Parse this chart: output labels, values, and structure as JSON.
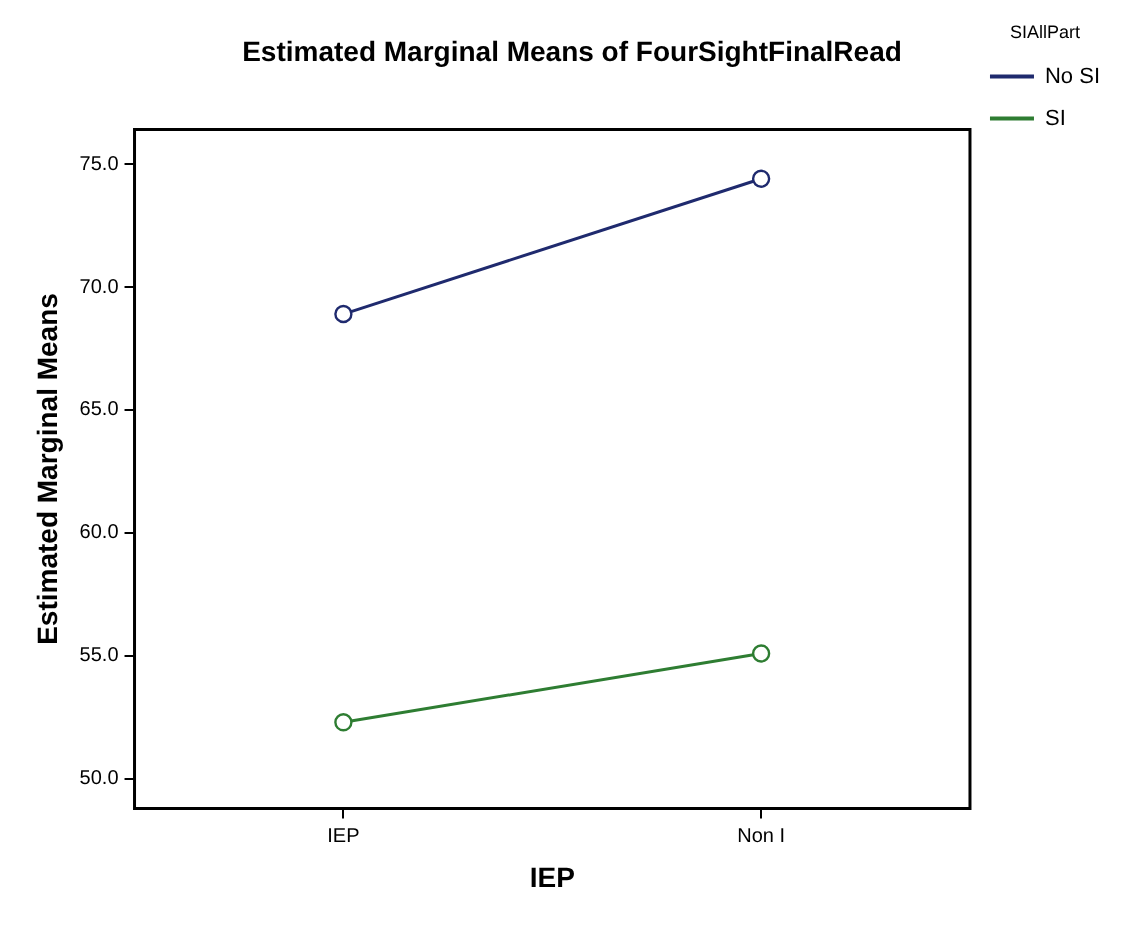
{
  "chart_data": {
    "type": "line",
    "title": "Estimated Marginal Means of FourSightFinalRead",
    "xlabel": "IEP",
    "ylabel": "Estimated Marginal Means",
    "legend_title": "SIAllPart",
    "categories": [
      "IEP",
      "Non I"
    ],
    "series": [
      {
        "name": "No SI",
        "color": "#1f2a6e",
        "values": [
          68.9,
          74.4
        ]
      },
      {
        "name": "SI",
        "color": "#2e7d32",
        "values": [
          52.3,
          55.1
        ]
      }
    ],
    "ylim": [
      48.8,
      76.4
    ],
    "yticks": [
      {
        "value": 50,
        "label": "50.0"
      },
      {
        "value": 55,
        "label": "55.0"
      },
      {
        "value": 60,
        "label": "60.0"
      },
      {
        "value": 65,
        "label": "65.0"
      },
      {
        "value": 70,
        "label": "70.0"
      },
      {
        "value": 75,
        "label": "75.0"
      }
    ],
    "grid": false,
    "legend": "top right",
    "marker": "circle",
    "line_style": "solid"
  }
}
